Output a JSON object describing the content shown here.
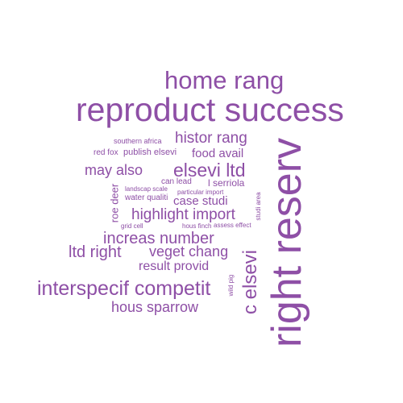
{
  "colors": {
    "word": "#8e4fa6",
    "background": "#ffffff"
  },
  "words": {
    "home_rang": "home rang",
    "reproduct_success": "reproduct success",
    "histor_rang": "histor rang",
    "southern_africa": "southern africa",
    "red_fox": "red fox",
    "publish_elsevi": "publish elsevi",
    "food_avail": "food avail",
    "may_also": "may also",
    "elsevi_ltd": "elsevi ltd",
    "can_lead": "can lead",
    "l_serriola": "l serriola",
    "landscap_scale": "landscap scale",
    "particular_import": "particular import",
    "roe_deer": "roe deer",
    "water_qualiti": "water qualiti",
    "case_studi": "case studi",
    "studi_area": "studi area",
    "highlight_import": "highlight import",
    "grid_cell": "grid cell",
    "hous_finch": "hous finch",
    "assess_effect": "assess effect",
    "increas_number": "increas number",
    "ltd_right": "ltd right",
    "veget_chang": "veget chang",
    "result_provid": "result provid",
    "wild_pig": "wild pig",
    "interspecif_competit": "interspecif competit",
    "hous_sparrow": "hous sparrow",
    "c_elsevi": "c elsevi",
    "right_reserv": "right reserv"
  }
}
